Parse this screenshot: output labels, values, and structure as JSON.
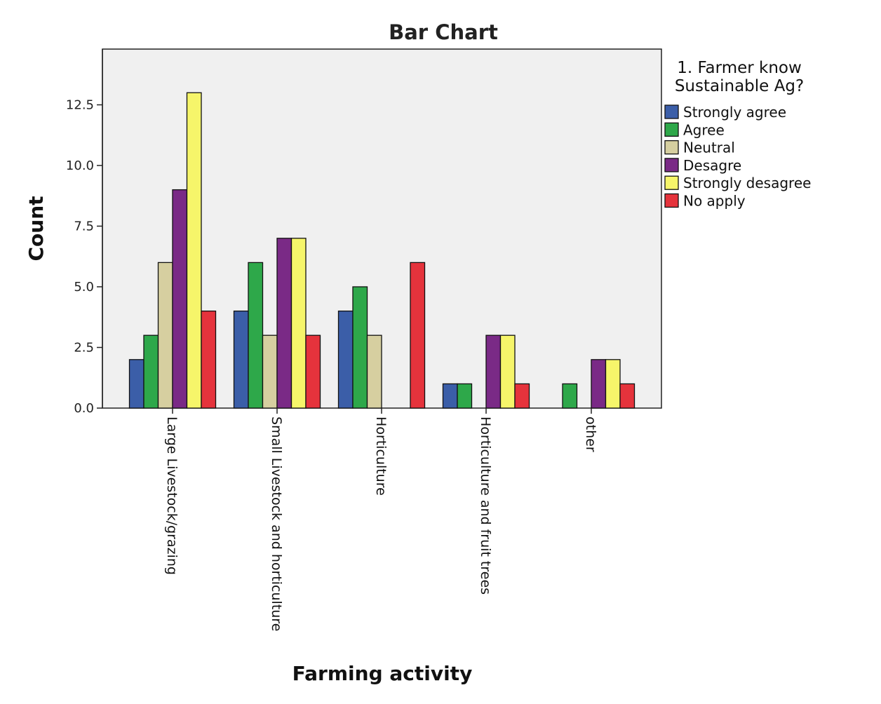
{
  "chart_data": {
    "type": "bar",
    "title": "Bar Chart",
    "xlabel": "Farming activity",
    "ylabel": "Count",
    "ylim": [
      0,
      14.8
    ],
    "yticks": [
      "0.0",
      "2.5",
      "5.0",
      "7.5",
      "10.0",
      "12.5"
    ],
    "ytick_values": [
      0,
      2.5,
      5,
      7.5,
      10,
      12.5
    ],
    "grid": false,
    "legend_title": "1. Farmer know Sustainable Ag?",
    "legend_title_lines": [
      "1. Farmer know",
      "Sustainable Ag?"
    ],
    "legend_position": "right",
    "categories": [
      "Large Livestock/grazing",
      "Small Livestock and horticulture",
      "Horticulture",
      "Horticulture and fruit trees",
      "other"
    ],
    "series": [
      {
        "name": "Strongly agree",
        "color": "#3b5ea8",
        "values": [
          2,
          4,
          4,
          1,
          0
        ]
      },
      {
        "name": "Agree",
        "color": "#2ea84a",
        "values": [
          3,
          6,
          5,
          1,
          1
        ]
      },
      {
        "name": "Neutral",
        "color": "#d6cfa0",
        "values": [
          6,
          3,
          3,
          0,
          0
        ]
      },
      {
        "name": "Desagre",
        "color": "#7a2a86",
        "values": [
          9,
          7,
          0,
          3,
          2
        ]
      },
      {
        "name": "Strongly desagree",
        "color": "#f6f56a",
        "values": [
          13,
          7,
          0,
          3,
          2
        ]
      },
      {
        "name": "No apply",
        "color": "#e5333c",
        "values": [
          4,
          3,
          6,
          1,
          1
        ]
      }
    ],
    "plot_background": "#f0f0f0"
  }
}
